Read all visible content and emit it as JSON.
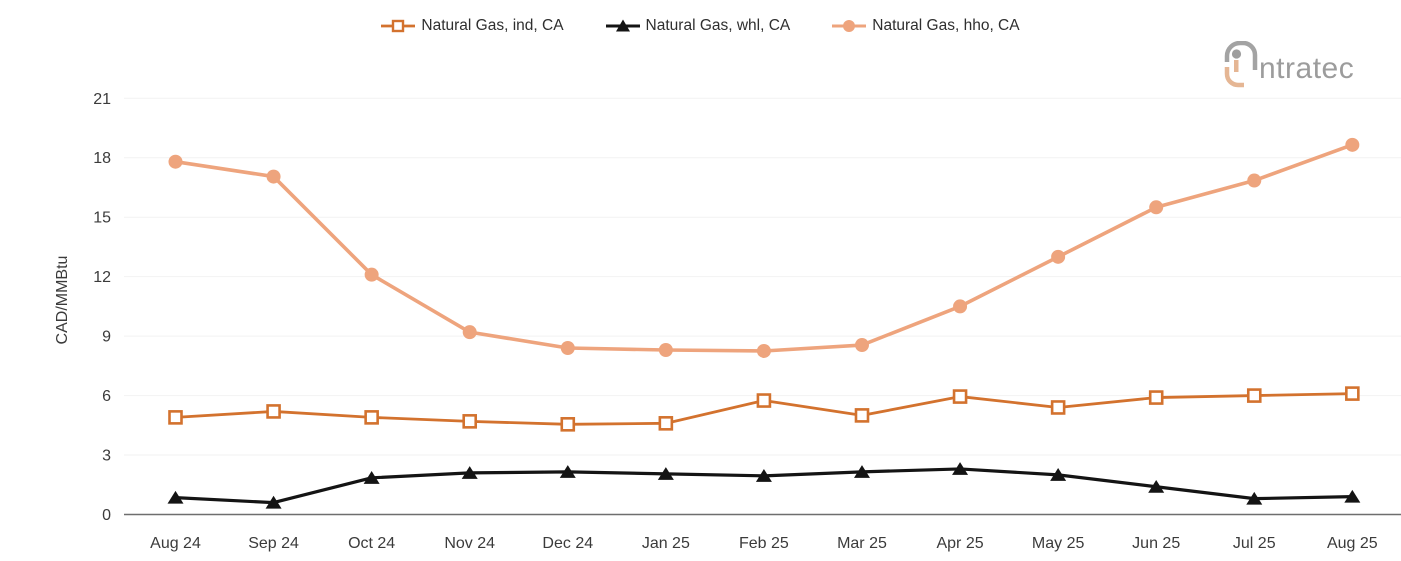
{
  "logo": {
    "name": "intratec",
    "text_after_mark": "ntratec"
  },
  "colors": {
    "background": "#ffffff",
    "grid": "#f2f2f2",
    "axis_line": "#6e6e6e",
    "tick_text": "#3b3b3b",
    "legend_text": "#2f2f2f",
    "logo_gray": "#9e9e9e",
    "logo_tan": "#e5b694",
    "series_ind": "#d3722e",
    "series_whl": "#141414",
    "series_hho": "#eea47d"
  },
  "chart_data": {
    "type": "line",
    "title": "",
    "xlabel": "",
    "ylabel": "CAD/MMBtu",
    "ylim": [
      0,
      21
    ],
    "yticks": [
      0,
      3,
      6,
      9,
      12,
      15,
      18,
      21
    ],
    "grid": "horizontal-light",
    "legend_position": "top-center",
    "categories": [
      "Aug 24",
      "Sep 24",
      "Oct 24",
      "Nov 24",
      "Dec 24",
      "Jan 25",
      "Feb 25",
      "Mar 25",
      "Apr 25",
      "May 25",
      "Jun 25",
      "Jul 25",
      "Aug 25"
    ],
    "series": [
      {
        "name": "Natural Gas, ind, CA",
        "marker": "square-open",
        "color": "#d3722e",
        "line_width": 2.8,
        "values": [
          4.9,
          5.2,
          4.9,
          4.7,
          4.55,
          4.6,
          5.75,
          5.0,
          5.95,
          5.4,
          5.9,
          6.0,
          6.1
        ]
      },
      {
        "name": "Natural Gas, whl, CA",
        "marker": "triangle-filled",
        "color": "#141414",
        "line_width": 3.2,
        "values": [
          0.85,
          0.6,
          1.85,
          2.1,
          2.15,
          2.05,
          1.95,
          2.15,
          2.3,
          2.0,
          1.4,
          0.8,
          0.9
        ]
      },
      {
        "name": "Natural Gas, hho, CA",
        "marker": "circle-filled",
        "color": "#eea47d",
        "line_width": 3.6,
        "values": [
          17.8,
          17.05,
          12.1,
          9.2,
          8.4,
          8.3,
          8.25,
          8.55,
          10.5,
          13.0,
          15.5,
          16.85,
          18.65
        ]
      }
    ]
  }
}
